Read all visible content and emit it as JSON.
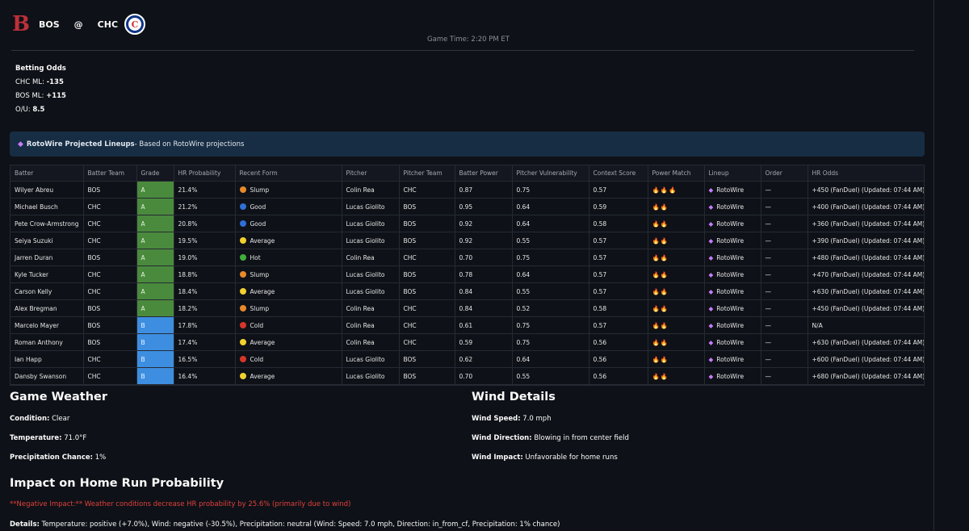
{
  "matchup": {
    "away_abbr": "BOS",
    "at": "@",
    "home_abbr": "CHC",
    "away_logo_letter": "B",
    "home_logo_letter": "C",
    "game_time": "Game Time: 2:20 PM ET"
  },
  "betting": {
    "title": "Betting Odds",
    "chc_label": "CHC ML: ",
    "chc_value": "-135",
    "bos_label": "BOS ML: ",
    "bos_value": "+115",
    "ou_label": "O/U: ",
    "ou_value": "8.5"
  },
  "banner": {
    "bold": "RotoWire Projected Lineups",
    "rest": " - Based on RotoWire projections"
  },
  "table": {
    "headers": [
      "Batter",
      "Batter Team",
      "Grade",
      "HR Probability",
      "Recent Form",
      "Pitcher",
      "Pitcher Team",
      "Batter Power",
      "Pitcher Vulnerability",
      "Context Score",
      "Power Match",
      "Lineup",
      "Order",
      "HR Odds"
    ],
    "rows": [
      [
        "Wilyer Abreu",
        "BOS",
        "A",
        "21.4%",
        "Slump",
        "Colin Rea",
        "CHC",
        "0.87",
        "0.75",
        "0.57",
        "🔥🔥🔥",
        "RotoWire",
        "—",
        "+450 (FanDuel) (Updated: 07:44 AM)"
      ],
      [
        "Michael Busch",
        "CHC",
        "A",
        "21.2%",
        "Good",
        "Lucas Giolito",
        "BOS",
        "0.95",
        "0.64",
        "0.59",
        "🔥🔥",
        "RotoWire",
        "—",
        "+400 (FanDuel) (Updated: 07:44 AM)"
      ],
      [
        "Pete Crow-Armstrong",
        "CHC",
        "A",
        "20.8%",
        "Good",
        "Lucas Giolito",
        "BOS",
        "0.92",
        "0.64",
        "0.58",
        "🔥🔥",
        "RotoWire",
        "—",
        "+360 (FanDuel) (Updated: 07:44 AM)"
      ],
      [
        "Seiya Suzuki",
        "CHC",
        "A",
        "19.5%",
        "Average",
        "Lucas Giolito",
        "BOS",
        "0.92",
        "0.55",
        "0.57",
        "🔥🔥",
        "RotoWire",
        "—",
        "+390 (FanDuel) (Updated: 07:44 AM)"
      ],
      [
        "Jarren Duran",
        "BOS",
        "A",
        "19.0%",
        "Hot",
        "Colin Rea",
        "CHC",
        "0.70",
        "0.75",
        "0.57",
        "🔥🔥",
        "RotoWire",
        "—",
        "+480 (FanDuel) (Updated: 07:44 AM)"
      ],
      [
        "Kyle Tucker",
        "CHC",
        "A",
        "18.8%",
        "Slump",
        "Lucas Giolito",
        "BOS",
        "0.78",
        "0.64",
        "0.57",
        "🔥🔥",
        "RotoWire",
        "—",
        "+470 (FanDuel) (Updated: 07:44 AM)"
      ],
      [
        "Carson Kelly",
        "CHC",
        "A",
        "18.4%",
        "Average",
        "Lucas Giolito",
        "BOS",
        "0.84",
        "0.55",
        "0.57",
        "🔥🔥",
        "RotoWire",
        "—",
        "+630 (FanDuel) (Updated: 07:44 AM)"
      ],
      [
        "Alex Bregman",
        "BOS",
        "A",
        "18.2%",
        "Slump",
        "Colin Rea",
        "CHC",
        "0.84",
        "0.52",
        "0.58",
        "🔥🔥",
        "RotoWire",
        "—",
        "+450 (FanDuel) (Updated: 07:44 AM)"
      ],
      [
        "Marcelo Mayer",
        "BOS",
        "B",
        "17.8%",
        "Cold",
        "Colin Rea",
        "CHC",
        "0.61",
        "0.75",
        "0.57",
        "🔥🔥",
        "RotoWire",
        "—",
        "N/A"
      ],
      [
        "Roman Anthony",
        "BOS",
        "B",
        "17.4%",
        "Average",
        "Colin Rea",
        "CHC",
        "0.59",
        "0.75",
        "0.56",
        "🔥🔥",
        "RotoWire",
        "—",
        "+630 (FanDuel) (Updated: 07:44 AM)"
      ],
      [
        "Ian Happ",
        "CHC",
        "B",
        "16.5%",
        "Cold",
        "Lucas Giolito",
        "BOS",
        "0.62",
        "0.64",
        "0.56",
        "🔥🔥",
        "RotoWire",
        "—",
        "+600 (FanDuel) (Updated: 07:44 AM)"
      ],
      [
        "Dansby Swanson",
        "CHC",
        "B",
        "16.4%",
        "Average",
        "Lucas Giolito",
        "BOS",
        "0.70",
        "0.55",
        "0.56",
        "🔥🔥",
        "RotoWire",
        "—",
        "+680 (FanDuel) (Updated: 07:44 AM)"
      ]
    ]
  },
  "form_colors": {
    "Slump": "#e8892b",
    "Good": "#2f6fd6",
    "Average": "#f2d12e",
    "Hot": "#3fae3a",
    "Cold": "#d8352a"
  },
  "grade_colors": {
    "A": "#4a8a3d",
    "B": "#3d8ee0"
  },
  "weather": {
    "title": "Game Weather",
    "condition_label": "Condition:",
    "condition_value": " Clear",
    "temp_label": "Temperature:",
    "temp_value": " 71.0°F",
    "precip_label": "Precipitation Chance:",
    "precip_value": " 1%"
  },
  "wind": {
    "title": "Wind Details",
    "speed_label": "Wind Speed:",
    "speed_value": " 7.0 mph",
    "direction_label": "Wind Direction:",
    "direction_value": " Blowing in from center field",
    "impact_label": "Wind Impact:",
    "impact_value": " Unfavorable for home runs"
  },
  "impact": {
    "title": "Impact on Home Run Probability",
    "negative_text": "**Negative Impact:** Weather conditions decrease HR probability by 25.6% (primarily due to wind)",
    "details_label": "Details:",
    "details_value": " Temperature: positive (+7.0%), Wind: negative (-30.5%), Precipitation: neutral (Wind: Speed: 7.0 mph, Direction: in_from_cf, Precipitation: 1% chance)"
  }
}
